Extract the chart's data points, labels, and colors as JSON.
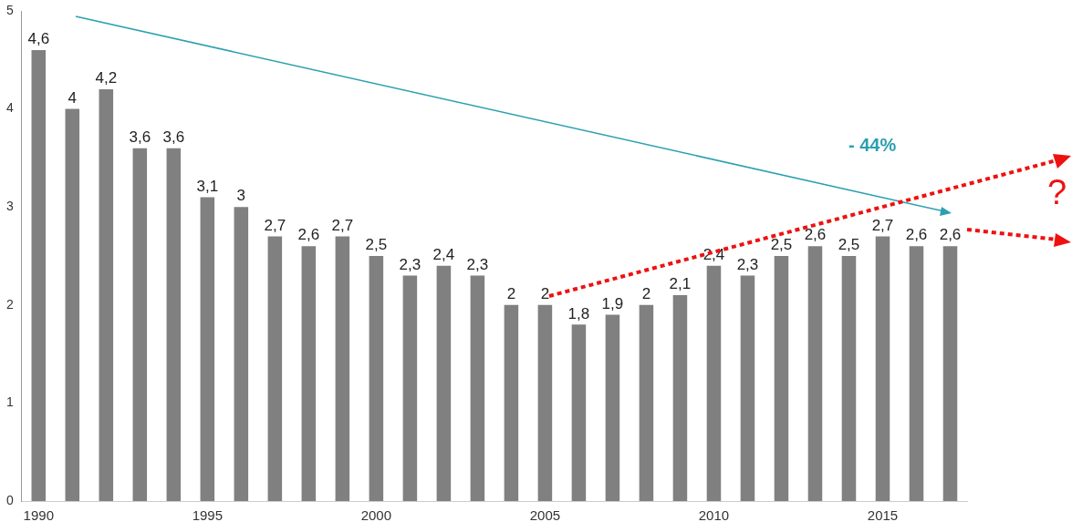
{
  "chart_data": {
    "type": "bar",
    "categories": [
      "1990",
      null,
      null,
      null,
      null,
      "1995",
      null,
      null,
      null,
      null,
      "2000",
      null,
      null,
      null,
      null,
      "2005",
      null,
      null,
      null,
      null,
      "2010",
      null,
      null,
      null,
      null,
      "2015",
      null,
      null
    ],
    "values": [
      4.6,
      4,
      4.2,
      3.6,
      3.6,
      3.1,
      3,
      2.7,
      2.6,
      2.7,
      2.5,
      2.3,
      2.4,
      2.3,
      2,
      2,
      1.8,
      1.9,
      2,
      2.1,
      2.4,
      2.3,
      2.5,
      2.6,
      2.5,
      2.7,
      2.6,
      2.6
    ],
    "value_labels": [
      "4,6",
      "4",
      "4,2",
      "3,6",
      "3,6",
      "3,1",
      "3",
      "2,7",
      "2,6",
      "2,7",
      "2,5",
      "2,3",
      "2,4",
      "2,3",
      "2",
      "2",
      "1,8",
      "1,9",
      "2",
      "2,1",
      "2,4",
      "2,3",
      "2,5",
      "2,6",
      "2,5",
      "2,7",
      "2,6",
      "2,6"
    ],
    "color": "#808080",
    "ylim": [
      0,
      5
    ],
    "yticks": [
      0,
      1,
      2,
      3,
      4,
      5
    ],
    "grid": false,
    "legend": false,
    "annotations": [
      "- 44%",
      "?"
    ]
  }
}
